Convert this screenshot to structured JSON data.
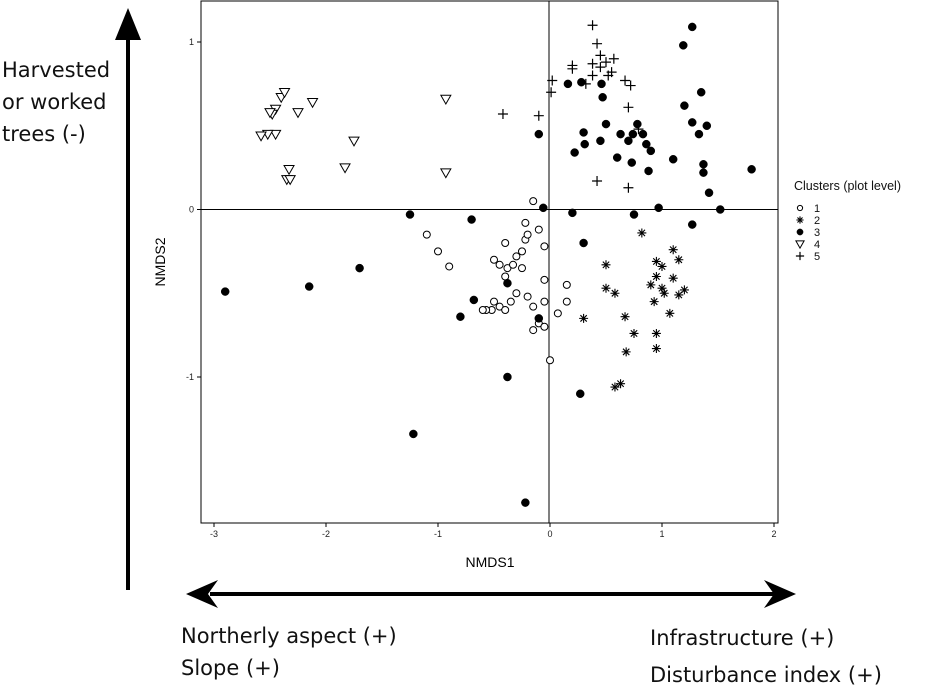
{
  "annotations": {
    "vertical_lines": [
      "Harvested",
      "or worked",
      "trees (-)"
    ],
    "bottom_left_lines": [
      "Northerly aspect (+)",
      "Slope (+)"
    ],
    "bottom_right_lines": [
      "Infrastructure (+)",
      "Disturbance index (+)"
    ]
  },
  "chart_data": {
    "type": "scatter",
    "title": "",
    "xlabel": "NMDS1",
    "ylabel": "NMDS2",
    "xlim": [
      -3.1,
      2.05
    ],
    "ylim": [
      -1.88,
      1.25
    ],
    "xticks": [
      -3,
      -2,
      -1,
      0,
      1,
      2
    ],
    "yticks": [
      -1,
      0,
      1
    ],
    "grid": false,
    "reference_lines": {
      "x": 0,
      "y": 0
    },
    "legend": {
      "title": "Clusters (plot level)",
      "position": "right"
    },
    "series": [
      {
        "name": "1",
        "marker": "open-circle",
        "points": [
          [
            -0.15,
            0.05
          ],
          [
            -1.1,
            -0.15
          ],
          [
            -1.0,
            -0.25
          ],
          [
            -0.9,
            -0.34
          ],
          [
            -0.5,
            -0.3
          ],
          [
            -0.45,
            -0.33
          ],
          [
            -0.38,
            -0.35
          ],
          [
            -0.33,
            -0.33
          ],
          [
            -0.3,
            -0.28
          ],
          [
            -0.25,
            -0.25
          ],
          [
            -0.22,
            -0.18
          ],
          [
            -0.2,
            -0.15
          ],
          [
            -0.22,
            -0.08
          ],
          [
            -0.4,
            -0.2
          ],
          [
            -0.4,
            -0.4
          ],
          [
            -0.3,
            -0.5
          ],
          [
            -0.5,
            -0.55
          ],
          [
            -0.45,
            -0.58
          ],
          [
            -0.4,
            -0.6
          ],
          [
            -0.35,
            -0.55
          ],
          [
            -0.2,
            -0.52
          ],
          [
            -0.15,
            -0.58
          ],
          [
            -0.05,
            -0.55
          ],
          [
            -0.05,
            -0.42
          ],
          [
            -0.05,
            -0.22
          ],
          [
            -0.1,
            -0.12
          ],
          [
            0.15,
            -0.45
          ],
          [
            0.15,
            -0.55
          ],
          [
            0.07,
            -0.62
          ],
          [
            -0.1,
            -0.68
          ],
          [
            -0.05,
            -0.7
          ],
          [
            -0.15,
            -0.72
          ],
          [
            -0.52,
            -0.6
          ],
          [
            -0.57,
            -0.6
          ],
          [
            -0.6,
            -0.6
          ],
          [
            0.0,
            -0.9
          ],
          [
            -0.25,
            -0.35
          ]
        ]
      },
      {
        "name": "2",
        "marker": "asterisk",
        "points": [
          [
            0.82,
            -0.14
          ],
          [
            0.5,
            -0.33
          ],
          [
            1.1,
            -0.24
          ],
          [
            0.95,
            -0.31
          ],
          [
            1.15,
            -0.3
          ],
          [
            1.0,
            -0.34
          ],
          [
            0.95,
            -0.4
          ],
          [
            1.1,
            -0.41
          ],
          [
            1.2,
            -0.48
          ],
          [
            0.9,
            -0.45
          ],
          [
            0.5,
            -0.47
          ],
          [
            0.58,
            -0.5
          ],
          [
            1.0,
            -0.47
          ],
          [
            1.02,
            -0.5
          ],
          [
            1.15,
            -0.51
          ],
          [
            0.93,
            -0.55
          ],
          [
            1.07,
            -0.62
          ],
          [
            0.67,
            -0.64
          ],
          [
            0.3,
            -0.65
          ],
          [
            0.95,
            -0.74
          ],
          [
            0.75,
            -0.74
          ],
          [
            0.68,
            -0.85
          ],
          [
            0.95,
            -0.83
          ],
          [
            0.63,
            -1.04
          ],
          [
            0.58,
            -1.06
          ]
        ]
      },
      {
        "name": "3",
        "marker": "filled-circle",
        "points": [
          [
            1.27,
            1.09
          ],
          [
            1.19,
            0.98
          ],
          [
            0.16,
            0.75
          ],
          [
            0.28,
            0.76
          ],
          [
            0.46,
            0.75
          ],
          [
            0.47,
            0.67
          ],
          [
            1.35,
            0.7
          ],
          [
            1.2,
            0.62
          ],
          [
            1.27,
            0.52
          ],
          [
            1.4,
            0.5
          ],
          [
            1.33,
            0.45
          ],
          [
            0.5,
            0.51
          ],
          [
            0.3,
            0.46
          ],
          [
            0.78,
            0.51
          ],
          [
            0.83,
            0.45
          ],
          [
            0.63,
            0.45
          ],
          [
            0.74,
            0.45
          ],
          [
            -0.1,
            0.45
          ],
          [
            0.31,
            0.39
          ],
          [
            0.45,
            0.41
          ],
          [
            0.7,
            0.41
          ],
          [
            0.86,
            0.39
          ],
          [
            0.9,
            0.35
          ],
          [
            0.22,
            0.34
          ],
          [
            0.6,
            0.31
          ],
          [
            0.73,
            0.28
          ],
          [
            1.1,
            0.3
          ],
          [
            1.37,
            0.27
          ],
          [
            1.37,
            0.22
          ],
          [
            0.88,
            0.23
          ],
          [
            1.8,
            0.24
          ],
          [
            1.42,
            0.1
          ],
          [
            0.97,
            0.01
          ],
          [
            1.52,
            0.0
          ],
          [
            -0.06,
            0.01
          ],
          [
            0.2,
            -0.02
          ],
          [
            0.75,
            -0.03
          ],
          [
            1.27,
            -0.09
          ],
          [
            -1.25,
            -0.03
          ],
          [
            -0.7,
            -0.06
          ],
          [
            0.3,
            -0.2
          ],
          [
            -1.7,
            -0.35
          ],
          [
            -2.15,
            -0.46
          ],
          [
            -2.9,
            -0.49
          ],
          [
            -0.38,
            -0.44
          ],
          [
            -0.68,
            -0.54
          ],
          [
            -0.8,
            -0.64
          ],
          [
            -0.1,
            -0.65
          ],
          [
            -0.38,
            -1.0
          ],
          [
            0.27,
            -1.1
          ],
          [
            -1.22,
            -1.34
          ],
          [
            -0.22,
            -1.75
          ]
        ]
      },
      {
        "name": "4",
        "marker": "open-triangle-down",
        "points": [
          [
            -2.4,
            0.67
          ],
          [
            -2.37,
            0.7
          ],
          [
            -2.12,
            0.64
          ],
          [
            -2.45,
            0.6
          ],
          [
            -2.48,
            0.57
          ],
          [
            -2.5,
            0.58
          ],
          [
            -2.25,
            0.58
          ],
          [
            -0.93,
            0.66
          ],
          [
            -2.45,
            0.45
          ],
          [
            -2.52,
            0.45
          ],
          [
            -2.58,
            0.44
          ],
          [
            -1.75,
            0.41
          ],
          [
            -2.33,
            0.24
          ],
          [
            -2.35,
            0.18
          ],
          [
            -2.32,
            0.18
          ],
          [
            -1.83,
            0.25
          ],
          [
            -0.93,
            0.22
          ]
        ]
      },
      {
        "name": "5",
        "marker": "plus",
        "points": [
          [
            0.38,
            1.1
          ],
          [
            0.42,
            0.99
          ],
          [
            0.45,
            0.92
          ],
          [
            0.5,
            0.88
          ],
          [
            0.57,
            0.9
          ],
          [
            0.38,
            0.87
          ],
          [
            0.45,
            0.85
          ],
          [
            0.2,
            0.86
          ],
          [
            0.55,
            0.82
          ],
          [
            0.2,
            0.84
          ],
          [
            0.52,
            0.8
          ],
          [
            0.38,
            0.8
          ],
          [
            0.67,
            0.77
          ],
          [
            0.02,
            0.77
          ],
          [
            0.32,
            0.75
          ],
          [
            0.72,
            0.74
          ],
          [
            0.01,
            0.7
          ],
          [
            -0.1,
            0.56
          ],
          [
            -0.42,
            0.57
          ],
          [
            0.7,
            0.61
          ],
          [
            0.79,
            0.48
          ],
          [
            0.42,
            0.17
          ],
          [
            0.7,
            0.13
          ]
        ]
      }
    ]
  }
}
